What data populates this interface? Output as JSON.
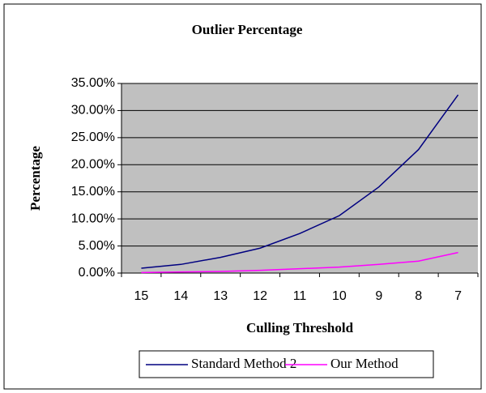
{
  "chart_data": {
    "type": "line",
    "title": "Outlier Percentage",
    "x_label": "Culling Threshold",
    "y_label": "Percentage",
    "categories": [
      "15",
      "14",
      "13",
      "12",
      "11",
      "10",
      "9",
      "8",
      "7"
    ],
    "series": [
      {
        "name": "Standard Method 2",
        "color": "#000080",
        "values": [
          0.9,
          1.6,
          2.9,
          4.6,
          7.3,
          10.6,
          15.9,
          22.8,
          32.9
        ]
      },
      {
        "name": "Our Method",
        "color": "#ff00ff",
        "values": [
          0.1,
          0.2,
          0.3,
          0.5,
          0.8,
          1.1,
          1.6,
          2.2,
          3.8
        ]
      }
    ],
    "ylim": [
      0,
      35
    ],
    "yticks": [
      {
        "value": 0,
        "label": "0.00%"
      },
      {
        "value": 5,
        "label": "5.00%"
      },
      {
        "value": 10,
        "label": "10.00%"
      },
      {
        "value": 15,
        "label": "15.00%"
      },
      {
        "value": 20,
        "label": "20.00%"
      },
      {
        "value": 25,
        "label": "25.00%"
      },
      {
        "value": 30,
        "label": "30.00%"
      },
      {
        "value": 35,
        "label": "35.00%"
      }
    ],
    "grid": true,
    "plot_background": "#c0c0c0",
    "legend": "bottom"
  }
}
